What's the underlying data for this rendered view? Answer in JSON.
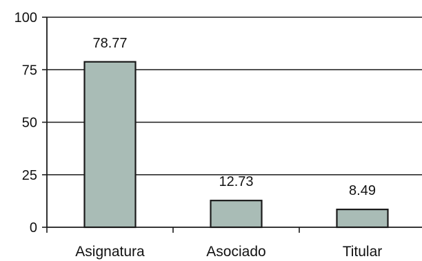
{
  "chart_data": {
    "type": "bar",
    "categories": [
      "Asignatura",
      "Asociado",
      "Titular"
    ],
    "values": [
      78.77,
      12.73,
      8.49
    ],
    "data_labels": [
      "78.77",
      "12.73",
      "8.49"
    ],
    "ylim": [
      0,
      100
    ],
    "yticks": [
      0,
      25,
      50,
      75,
      100
    ],
    "ytick_labels": [
      "0",
      "25",
      "50",
      "75",
      "100"
    ],
    "grid": true,
    "legend": "none",
    "colors": {
      "bar_fill": "#a9bcb6",
      "bar_stroke": "#1a1a1a",
      "grid": "#1a1a1a",
      "axis": "#1a1a1a"
    }
  }
}
